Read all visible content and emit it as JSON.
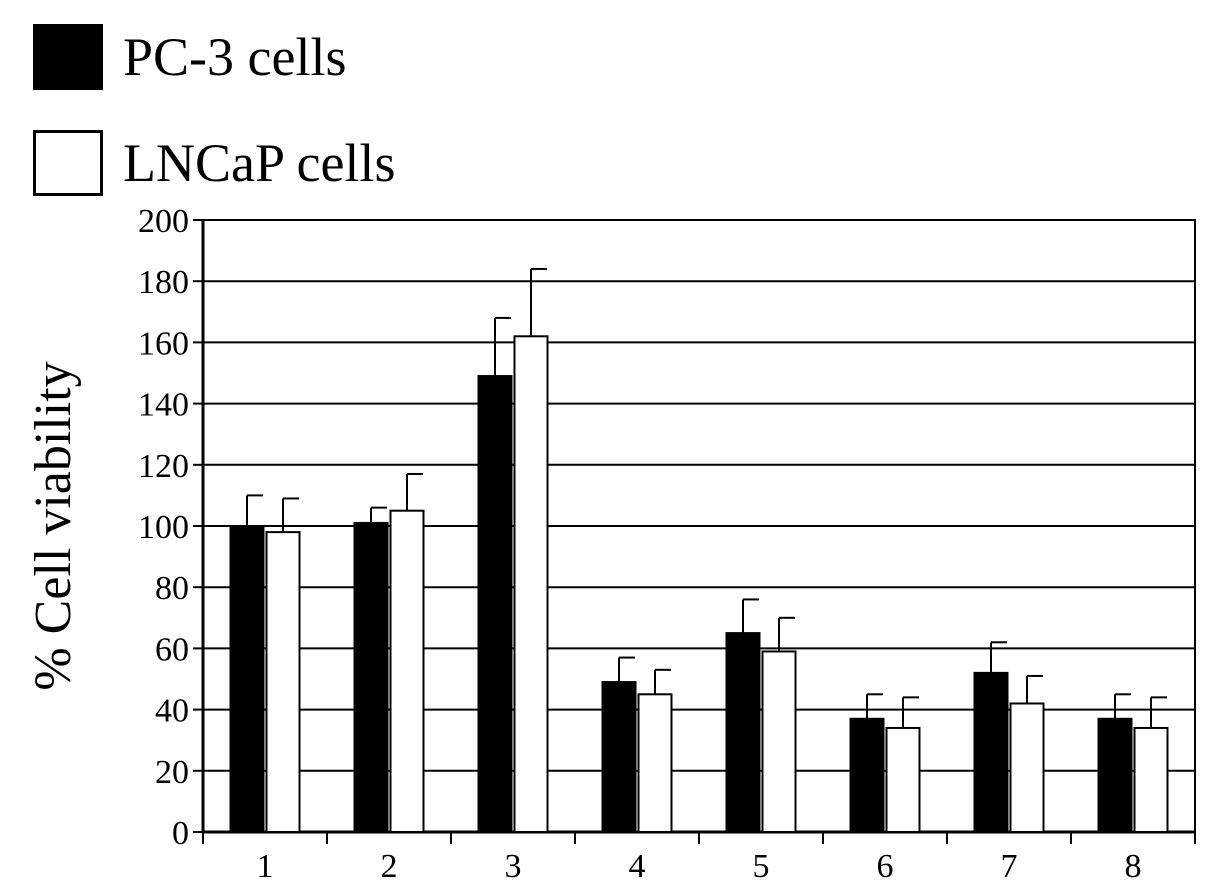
{
  "chart_data": {
    "type": "bar",
    "title": "",
    "xlabel": "",
    "ylabel": "% Cell viability",
    "ylim": [
      0,
      200
    ],
    "yticks": [
      "0",
      "20",
      "40",
      "60",
      "80",
      "100",
      "120",
      "140",
      "160",
      "180",
      "200"
    ],
    "categories": [
      "1",
      "2",
      "3",
      "4",
      "5",
      "6",
      "7",
      "8"
    ],
    "grid": true,
    "legend_position": "top-left",
    "series": [
      {
        "name": "PC-3 cells",
        "color": "#000000",
        "values": [
          100,
          101,
          149,
          49,
          65,
          37,
          52,
          37
        ],
        "errors": [
          10,
          5,
          19,
          8,
          11,
          8,
          10,
          8
        ]
      },
      {
        "name": "LNCaP cells",
        "color": "#ffffff",
        "values": [
          98,
          105,
          162,
          45,
          59,
          34,
          42,
          34
        ],
        "errors": [
          11,
          12,
          22,
          8,
          11,
          10,
          9,
          10
        ]
      }
    ]
  }
}
